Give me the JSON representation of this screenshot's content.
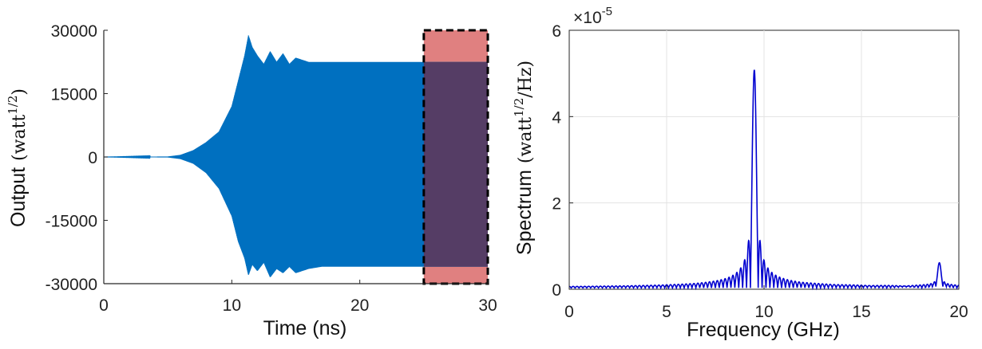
{
  "chart_data": [
    {
      "type": "area",
      "xlabel": "Time (ns)",
      "ylabel": "Output",
      "ylabel_unit": "(watt",
      "ylabel_unit_sup": "1/2",
      "ylabel_unit_end": ")",
      "xlim": [
        0,
        30
      ],
      "ylim": [
        -30000,
        30000
      ],
      "xticks": [
        0,
        10,
        20,
        30
      ],
      "yticks": [
        -30000,
        -15000,
        0,
        15000,
        30000
      ],
      "xtick_labels": [
        "0",
        "10",
        "20",
        "30"
      ],
      "ytick_labels": [
        "-30000",
        "-15000",
        "0",
        "15000",
        "30000"
      ],
      "color": "#0070c0",
      "envelope": {
        "t": [
          0,
          5,
          6,
          7,
          8,
          9,
          10,
          10.5,
          11,
          11.3,
          11.6,
          12,
          12.5,
          13,
          13.5,
          14,
          14.5,
          15,
          16,
          17,
          18,
          19,
          20,
          22,
          24,
          25,
          26,
          28,
          30
        ],
        "upper": [
          0,
          100,
          500,
          1600,
          3500,
          6000,
          12000,
          18000,
          24000,
          28800,
          26000,
          24000,
          22000,
          25000,
          22500,
          24500,
          22000,
          23500,
          22500,
          22500,
          22500,
          22500,
          22500,
          22500,
          22500,
          22500,
          22500,
          22500,
          22500
        ],
        "lower": [
          0,
          -100,
          -500,
          -1600,
          -3800,
          -7500,
          -14000,
          -20000,
          -24000,
          -28000,
          -25500,
          -27000,
          -25000,
          -28500,
          -26500,
          -27500,
          -26000,
          -27500,
          -26500,
          -26000,
          -26000,
          -26000,
          -26000,
          -26000,
          -26000,
          -26000,
          -26000,
          -26000,
          -26000
        ]
      },
      "highlight_window": {
        "x": [
          25,
          30
        ],
        "y": [
          -30000,
          30000
        ],
        "fill": "#e08080",
        "overlap_fill": "#553d65",
        "border": "dashed"
      }
    },
    {
      "type": "line",
      "xlabel": "Frequency (GHz)",
      "ylabel": "Spectrum",
      "ylabel_unit": "(watt",
      "ylabel_unit_sup": "1/2",
      "ylabel_unit_end": "/Hz)",
      "exponent_label": "×10",
      "exponent_power": "-5",
      "xlim": [
        0,
        20
      ],
      "ylim": [
        0,
        6
      ],
      "xticks": [
        0,
        5,
        10,
        15,
        20
      ],
      "yticks": [
        0,
        2,
        4,
        6
      ],
      "xtick_labels": [
        "0",
        "5",
        "10",
        "15",
        "20"
      ],
      "ytick_labels": [
        "0",
        "2",
        "4",
        "6"
      ],
      "grid": true,
      "color": "#0000d0",
      "main_peak": {
        "x": 9.5,
        "y": 5.05
      },
      "sidelobe_spacing": 0.2,
      "sidelobes": [
        {
          "x": 9.1,
          "y": 1.05
        },
        {
          "x": 9.9,
          "y": 1.1
        },
        {
          "x": 8.9,
          "y": 0.6
        },
        {
          "x": 10.1,
          "y": 0.6
        }
      ],
      "second_peak": {
        "x": 19.0,
        "y": 0.55
      }
    }
  ]
}
